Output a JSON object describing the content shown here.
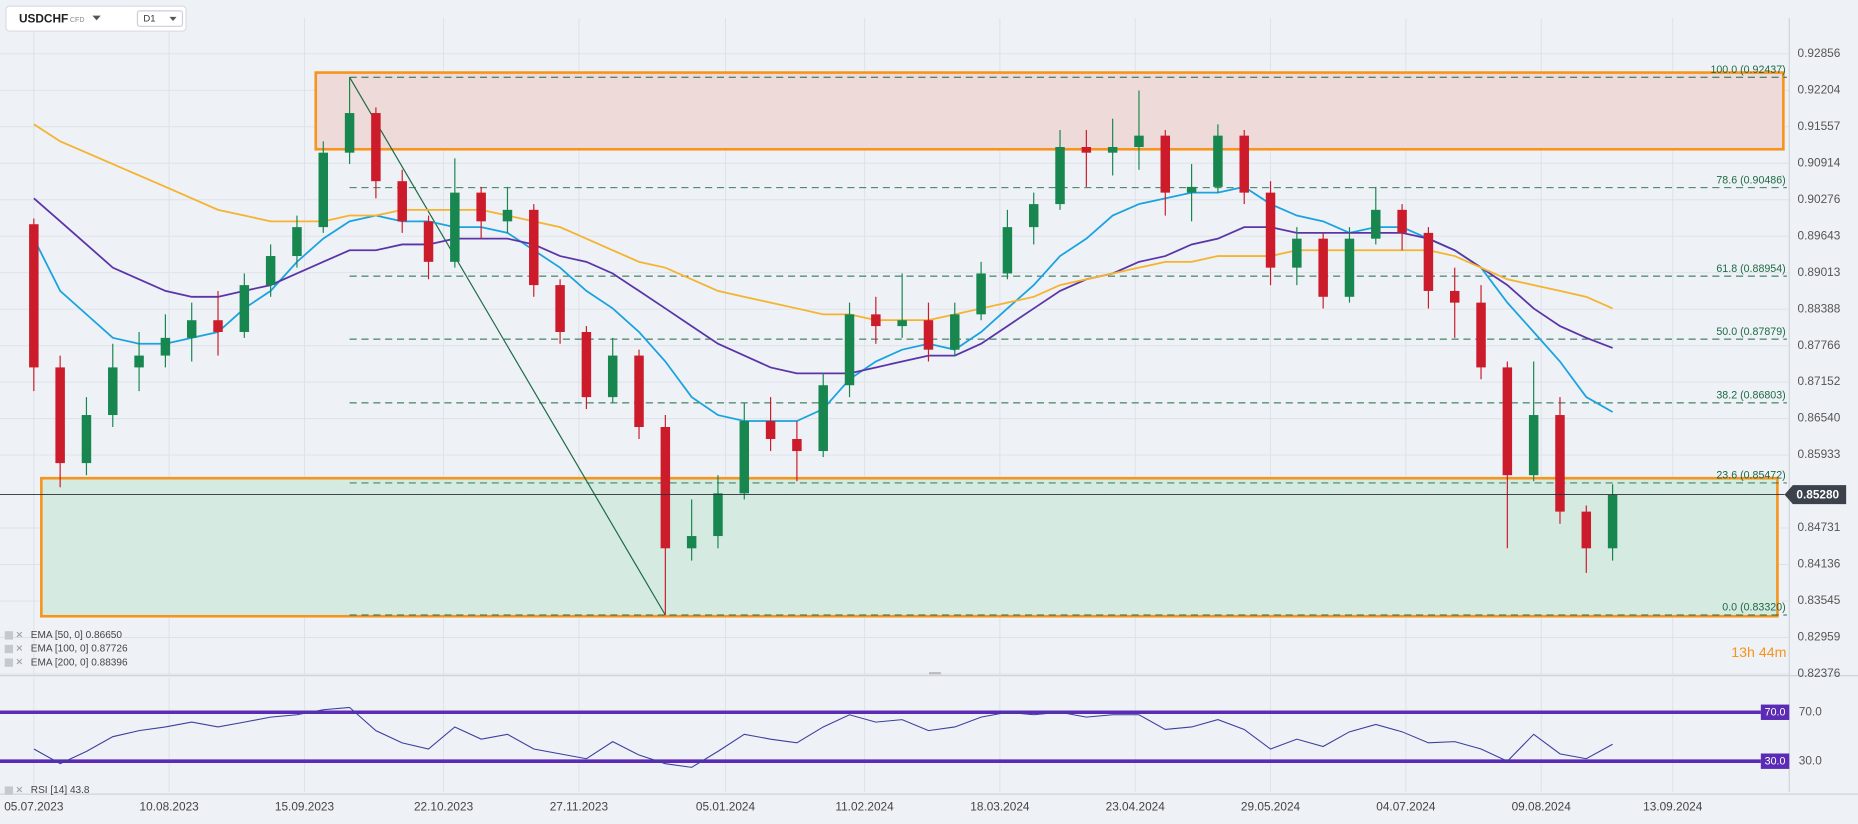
{
  "header": {
    "symbol": "USDCHF",
    "instrument_type": "CFD",
    "timeframe": "D1"
  },
  "chart_data": [
    {
      "type": "candlestick",
      "x": [
        "05.07.2023",
        "12.07.2023",
        "19.07.2023",
        "26.07.2023",
        "02.08.2023",
        "09.08.2023",
        "16.08.2023",
        "23.08.2023",
        "30.08.2023",
        "06.09.2023",
        "13.09.2023",
        "20.09.2023",
        "27.09.2023",
        "04.10.2023",
        "11.10.2023",
        "18.10.2023",
        "25.10.2023",
        "01.11.2023",
        "08.11.2023",
        "15.11.2023",
        "22.11.2023",
        "29.11.2023",
        "06.12.2023",
        "13.12.2023",
        "20.12.2023",
        "27.12.2023",
        "03.01.2024",
        "10.01.2024",
        "17.01.2024",
        "24.01.2024",
        "31.01.2024",
        "07.02.2024",
        "14.02.2024",
        "21.02.2024",
        "28.02.2024",
        "06.03.2024",
        "13.03.2024",
        "20.03.2024",
        "27.03.2024",
        "03.04.2024",
        "10.04.2024",
        "17.04.2024",
        "24.04.2024",
        "01.05.2024",
        "08.05.2024",
        "15.05.2024",
        "22.05.2024",
        "29.05.2024",
        "05.06.2024",
        "12.06.2024",
        "19.06.2024",
        "26.06.2024",
        "03.07.2024",
        "10.07.2024",
        "17.07.2024",
        "24.07.2024",
        "31.07.2024",
        "07.08.2024",
        "14.08.2024",
        "21.08.2024",
        "28.08.2024"
      ],
      "open": [
        0.8985,
        0.874,
        0.858,
        0.866,
        0.874,
        0.876,
        0.879,
        0.882,
        0.88,
        0.888,
        0.893,
        0.898,
        0.911,
        0.918,
        0.906,
        0.899,
        0.892,
        0.904,
        0.899,
        0.901,
        0.888,
        0.88,
        0.869,
        0.876,
        0.864,
        0.844,
        0.846,
        0.853,
        0.865,
        0.862,
        0.86,
        0.871,
        0.883,
        0.881,
        0.882,
        0.877,
        0.883,
        0.89,
        0.898,
        0.902,
        0.912,
        0.911,
        0.912,
        0.914,
        0.904,
        0.905,
        0.914,
        0.904,
        0.891,
        0.896,
        0.886,
        0.896,
        0.901,
        0.897,
        0.887,
        0.885,
        0.874,
        0.856,
        0.866,
        0.85,
        0.844
      ],
      "high": [
        0.8995,
        0.876,
        0.869,
        0.878,
        0.88,
        0.883,
        0.885,
        0.887,
        0.89,
        0.895,
        0.9,
        0.913,
        0.9244,
        0.919,
        0.908,
        0.9,
        0.91,
        0.905,
        0.905,
        0.902,
        0.889,
        0.881,
        0.879,
        0.877,
        0.866,
        0.852,
        0.856,
        0.868,
        0.869,
        0.865,
        0.873,
        0.885,
        0.886,
        0.89,
        0.885,
        0.885,
        0.892,
        0.901,
        0.904,
        0.915,
        0.915,
        0.917,
        0.922,
        0.915,
        0.909,
        0.916,
        0.915,
        0.906,
        0.898,
        0.897,
        0.898,
        0.905,
        0.902,
        0.898,
        0.891,
        0.888,
        0.875,
        0.875,
        0.869,
        0.851,
        0.8545
      ],
      "low": [
        0.87,
        0.854,
        0.856,
        0.864,
        0.87,
        0.874,
        0.875,
        0.876,
        0.879,
        0.886,
        0.891,
        0.897,
        0.909,
        0.903,
        0.897,
        0.889,
        0.891,
        0.896,
        0.897,
        0.886,
        0.878,
        0.867,
        0.868,
        0.862,
        0.8332,
        0.842,
        0.844,
        0.852,
        0.86,
        0.855,
        0.859,
        0.869,
        0.878,
        0.879,
        0.875,
        0.876,
        0.882,
        0.889,
        0.895,
        0.901,
        0.905,
        0.907,
        0.908,
        0.9,
        0.899,
        0.904,
        0.902,
        0.888,
        0.888,
        0.884,
        0.885,
        0.895,
        0.894,
        0.884,
        0.879,
        0.872,
        0.844,
        0.855,
        0.848,
        0.84,
        0.842
      ],
      "close": [
        0.874,
        0.858,
        0.866,
        0.874,
        0.876,
        0.879,
        0.882,
        0.88,
        0.888,
        0.893,
        0.898,
        0.911,
        0.918,
        0.906,
        0.899,
        0.892,
        0.904,
        0.899,
        0.901,
        0.888,
        0.88,
        0.869,
        0.876,
        0.864,
        0.844,
        0.846,
        0.853,
        0.865,
        0.862,
        0.86,
        0.871,
        0.883,
        0.881,
        0.882,
        0.877,
        0.883,
        0.89,
        0.898,
        0.902,
        0.912,
        0.911,
        0.912,
        0.914,
        0.904,
        0.905,
        0.914,
        0.904,
        0.891,
        0.896,
        0.886,
        0.896,
        0.901,
        0.897,
        0.887,
        0.885,
        0.874,
        0.856,
        0.866,
        0.85,
        0.844,
        0.8528
      ],
      "up_color": "#17874f",
      "down_color": "#cc1b2b",
      "xlim": [
        "26.06.2023",
        "14.10.2024"
      ],
      "xticks": [
        "05.07.2023",
        "10.08.2023",
        "15.09.2023",
        "22.10.2023",
        "27.11.2023",
        "05.01.2024",
        "11.02.2024",
        "18.03.2024",
        "23.04.2024",
        "29.05.2024",
        "04.07.2024",
        "09.08.2024",
        "13.09.2024"
      ],
      "ylim": [
        0.8235,
        0.935
      ],
      "yticks": [
        0.92856,
        0.92204,
        0.91557,
        0.90914,
        0.90276,
        0.89643,
        0.89013,
        0.88388,
        0.87766,
        0.87152,
        {
          "value": 0.8654,
          "label": "0.86540"
        },
        0.85933,
        0.84731,
        0.84136,
        0.83545,
        0.82959,
        0.82376
      ],
      "log_scale": true,
      "grid": true,
      "series": [
        {
          "name": "EMA [50, 0] 0.86650",
          "color": "#1aa3e0",
          "values": [
            0.896,
            0.887,
            0.883,
            0.879,
            0.878,
            0.878,
            0.879,
            0.88,
            0.884,
            0.887,
            0.892,
            0.896,
            0.899,
            0.9,
            0.899,
            0.899,
            0.898,
            0.898,
            0.897,
            0.894,
            0.891,
            0.887,
            0.884,
            0.88,
            0.875,
            0.869,
            0.866,
            0.865,
            0.865,
            0.865,
            0.867,
            0.872,
            0.875,
            0.877,
            0.878,
            0.877,
            0.88,
            0.884,
            0.888,
            0.893,
            0.896,
            0.9,
            0.902,
            0.903,
            0.904,
            0.904,
            0.905,
            0.902,
            0.9,
            0.899,
            0.897,
            0.898,
            0.898,
            0.896,
            0.894,
            0.891,
            0.885,
            0.88,
            0.875,
            0.869,
            0.8665
          ]
        },
        {
          "name": "EMA [100, 0] 0.87726",
          "color": "#5b35a8",
          "values": [
            0.903,
            0.899,
            0.895,
            0.891,
            0.889,
            0.887,
            0.886,
            0.886,
            0.887,
            0.888,
            0.89,
            0.892,
            0.894,
            0.894,
            0.895,
            0.895,
            0.896,
            0.896,
            0.896,
            0.895,
            0.893,
            0.892,
            0.89,
            0.887,
            0.884,
            0.881,
            0.878,
            0.876,
            0.874,
            0.873,
            0.873,
            0.873,
            0.874,
            0.875,
            0.876,
            0.876,
            0.878,
            0.881,
            0.884,
            0.887,
            0.889,
            0.89,
            0.892,
            0.893,
            0.895,
            0.896,
            0.898,
            0.898,
            0.897,
            0.897,
            0.897,
            0.897,
            0.897,
            0.896,
            0.894,
            0.891,
            0.888,
            0.884,
            0.881,
            0.879,
            0.8773
          ]
        },
        {
          "name": "EMA [200, 0] 0.88396",
          "color": "#f5b32e",
          "values": [
            0.916,
            0.913,
            0.911,
            0.909,
            0.907,
            0.905,
            0.903,
            0.901,
            0.9,
            0.899,
            0.899,
            0.899,
            0.9,
            0.9,
            0.901,
            0.901,
            0.901,
            0.901,
            0.9,
            0.899,
            0.898,
            0.896,
            0.894,
            0.892,
            0.891,
            0.889,
            0.887,
            0.886,
            0.885,
            0.884,
            0.883,
            0.883,
            0.882,
            0.882,
            0.882,
            0.883,
            0.884,
            0.885,
            0.886,
            0.888,
            0.889,
            0.89,
            0.891,
            0.892,
            0.892,
            0.893,
            0.893,
            0.893,
            0.894,
            0.894,
            0.894,
            0.894,
            0.894,
            0.894,
            0.893,
            0.891,
            0.889,
            0.888,
            0.887,
            0.886,
            0.884
          ]
        }
      ],
      "current_price": {
        "value": 0.8528,
        "label": "0.85280"
      },
      "fibonacci": {
        "color": "#1d6a45",
        "from": "27.09.2023",
        "to": "20.12.2023",
        "levels": [
          {
            "value": 0.92437,
            "label": "100.0 (0.92437)"
          },
          {
            "value": 0.90486,
            "label": "78.6 (0.90486)"
          },
          {
            "value": 0.88954,
            "label": "61.8 (0.88954)"
          },
          {
            "value": 0.87879,
            "label": "50.0 (0.87879)"
          },
          {
            "value": 0.86803,
            "label": "38.2 (0.86803)"
          },
          {
            "value": 0.85472,
            "label": "23.6 (0.85472)"
          },
          {
            "value": 0.8332,
            "label": "0.0 (0.83320)"
          }
        ]
      },
      "zones": [
        {
          "from": "18.09.2023",
          "low": 0.9116,
          "high": 0.9252,
          "fill": "#efdada",
          "border": "#f7941d"
        },
        {
          "from": "07.07.2023",
          "low": 0.833,
          "high": 0.8555,
          "fill": "#d5ebe2",
          "border": "#f7941d"
        }
      ],
      "countdown": "13h 44m"
    },
    {
      "type": "line",
      "ylim": [
        5,
        98
      ],
      "yticks": [
        {
          "value": 70,
          "label": "70.0"
        },
        {
          "value": 30,
          "label": "30.0"
        }
      ],
      "level_color": "#5b2bb5",
      "series": [
        {
          "name": "RSI [14] 43.8",
          "color": "#3b3f9e",
          "values": [
            40,
            28,
            38,
            50,
            55,
            58,
            62,
            58,
            62,
            66,
            68,
            72,
            74,
            55,
            45,
            40,
            58,
            48,
            52,
            40,
            36,
            32,
            46,
            35,
            28,
            25,
            38,
            52,
            48,
            45,
            58,
            68,
            62,
            64,
            55,
            58,
            66,
            70,
            68,
            70,
            66,
            68,
            68,
            56,
            58,
            64,
            56,
            40,
            48,
            42,
            54,
            60,
            54,
            45,
            46,
            40,
            30,
            52,
            36,
            32,
            43.8
          ]
        }
      ]
    }
  ]
}
